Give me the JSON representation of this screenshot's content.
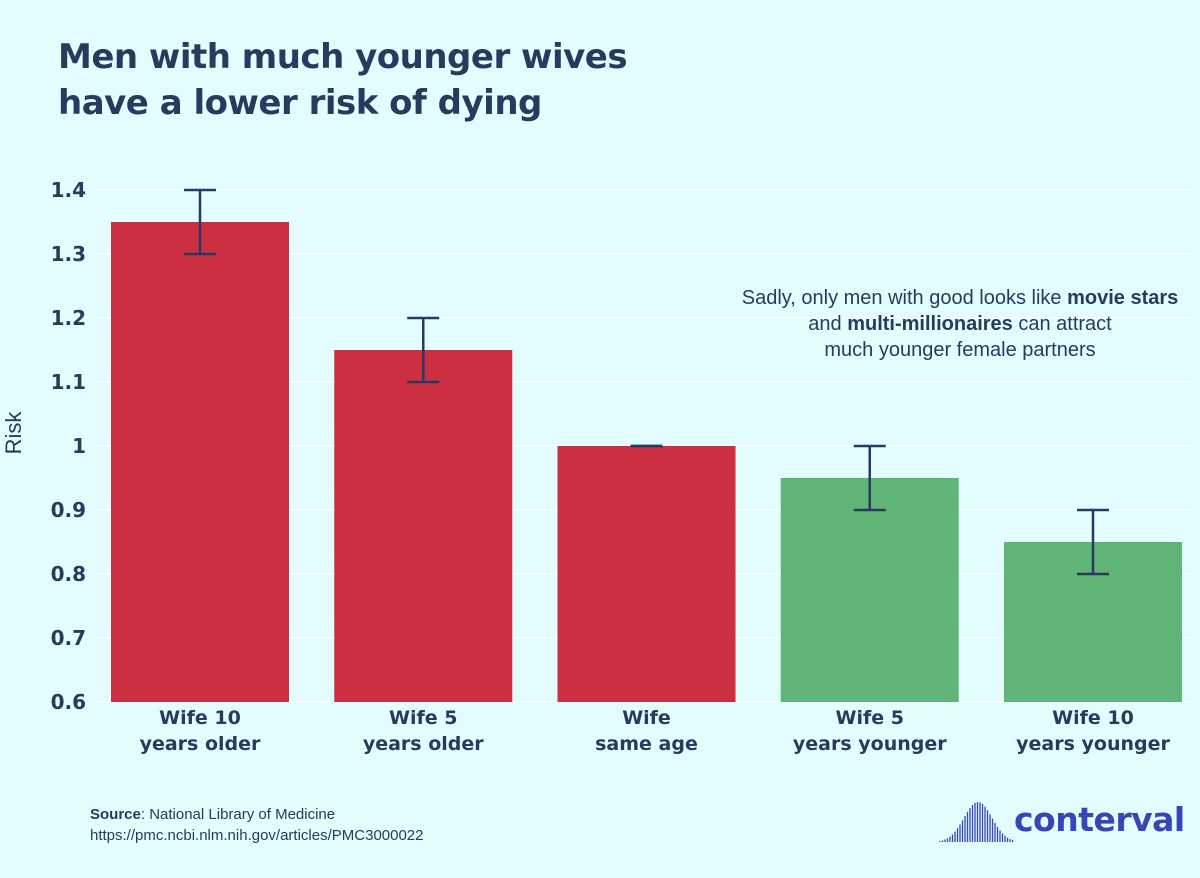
{
  "chart_data": {
    "type": "bar",
    "title_lines": [
      "Men with much younger wives",
      "have a lower risk of dying"
    ],
    "ylabel": "Risk",
    "ylim": [
      0.6,
      1.4
    ],
    "yticks": [
      "0.6",
      "0.7",
      "0.8",
      "0.9",
      "1",
      "1.1",
      "1.2",
      "1.3",
      "1.4"
    ],
    "grid": true,
    "categories": [
      [
        "Wife 10",
        "years older"
      ],
      [
        "Wife 5",
        "years older"
      ],
      [
        "Wife",
        "same age"
      ],
      [
        "Wife 5",
        "years younger"
      ],
      [
        "Wife 10",
        "years younger"
      ]
    ],
    "values": [
      1.35,
      1.15,
      1.0,
      0.95,
      0.85
    ],
    "error_low": [
      1.3,
      1.1,
      1.0,
      0.9,
      0.8
    ],
    "error_high": [
      1.4,
      1.2,
      1.0,
      1.0,
      0.9
    ],
    "bar_colors": [
      "#cb2f40",
      "#cb2f40",
      "#cb2f40",
      "#61b478",
      "#61b478"
    ],
    "errorbar_color": "#283a5e"
  },
  "annotation": {
    "line1_pre": "Sadly, only men with good looks like ",
    "line1_bold": "movie stars",
    "line2_pre": "and ",
    "line2_bold": "multi-millionaires",
    "line2_post": " can attract",
    "line3": "much younger female partners"
  },
  "source": {
    "label": "Source",
    "name": ": National Library of Medicine",
    "url": "https://pmc.ncbi.nlm.nih.gov/articles/PMC3000022"
  },
  "logo": {
    "text": "conterval",
    "color": "#3546b8"
  },
  "colors": {
    "background": "#e3fcfd",
    "text": "#283a5e"
  }
}
